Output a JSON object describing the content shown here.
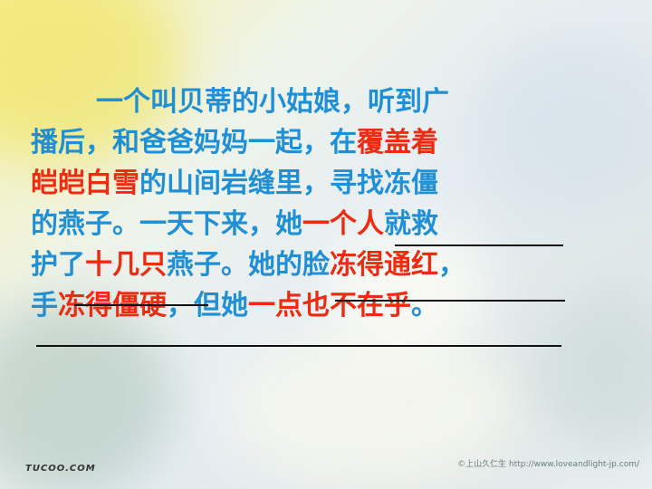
{
  "slide": {
    "paragraph": {
      "line1": "一个叫贝蒂的小姑娘，听到广",
      "line2_a": "播后，和爸爸妈妈一起，在",
      "line2_b": "覆盖着",
      "line3_a": "皑皑白雪",
      "line3_b": "的山间岩缝里，寻找冻僵",
      "line4_a": "的燕子。一天下来，她",
      "line4_b": "一个人",
      "line4_c": "就救",
      "line5_a": "护了",
      "line5_b": "十几只",
      "line5_c": "燕子。她的脸",
      "line5_d": "冻得通红",
      "line5_e": "，",
      "line6_a": "手",
      "line6_b": "冻得僵硬",
      "line6_c": "，但她",
      "line6_d": "一点也不在乎",
      "line6_e": "。"
    },
    "logo_text": "TUCOO.COM",
    "credit_text": "©上山久仁生  http://www.loveandlight-jp.com/"
  },
  "colors": {
    "text_blue": "#1f8fd6",
    "highlight_red": "#ee2a10"
  }
}
